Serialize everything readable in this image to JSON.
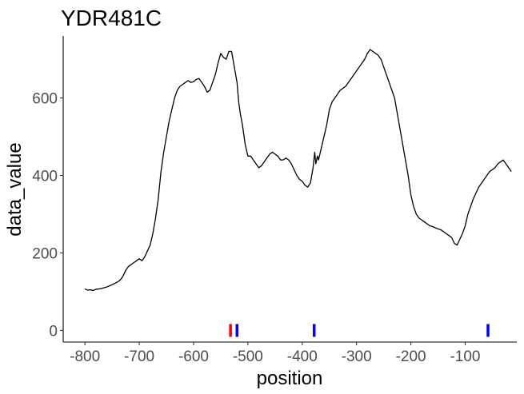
{
  "chart_data": {
    "type": "line",
    "title": "YDR481C",
    "xlabel": "position",
    "ylabel": "data_value",
    "xlim": [
      -840,
      -5
    ],
    "ylim": [
      -30,
      760
    ],
    "x_ticks": [
      -800,
      -700,
      -600,
      -500,
      -400,
      -300,
      -200,
      -100
    ],
    "x_tick_labels": [
      "-800",
      "-700",
      "-600",
      "-500",
      "-400",
      "-300",
      "-200",
      "-100"
    ],
    "y_ticks": [
      0,
      200,
      400,
      600
    ],
    "y_tick_labels": [
      "0",
      "200",
      "400",
      "600"
    ],
    "grid": false,
    "legend": "none",
    "line_color": "#000000",
    "series": [
      {
        "x": [
          -800,
          -795,
          -790,
          -785,
          -780,
          -770,
          -760,
          -750,
          -740,
          -735,
          -730,
          -725,
          -720,
          -715,
          -710,
          -705,
          -700,
          -695,
          -690,
          -685,
          -680,
          -675,
          -670,
          -665,
          -660,
          -655,
          -650,
          -645,
          -640,
          -635,
          -630,
          -625,
          -620,
          -615,
          -610,
          -605,
          -600,
          -595,
          -590,
          -585,
          -580,
          -575,
          -570,
          -565,
          -560,
          -555,
          -550,
          -545,
          -540,
          -535,
          -530,
          -525,
          -520,
          -517,
          -514,
          -510,
          -505,
          -500,
          -495,
          -490,
          -485,
          -480,
          -475,
          -470,
          -465,
          -460,
          -455,
          -450,
          -445,
          -440,
          -435,
          -430,
          -425,
          -420,
          -415,
          -410,
          -405,
          -400,
          -395,
          -390,
          -385,
          -380,
          -377,
          -375,
          -372,
          -370,
          -365,
          -360,
          -355,
          -350,
          -345,
          -340,
          -335,
          -330,
          -325,
          -320,
          -315,
          -310,
          -305,
          -300,
          -295,
          -290,
          -285,
          -280,
          -275,
          -270,
          -265,
          -260,
          -255,
          -250,
          -245,
          -240,
          -235,
          -230,
          -225,
          -220,
          -215,
          -210,
          -205,
          -200,
          -195,
          -190,
          -185,
          -180,
          -175,
          -170,
          -165,
          -160,
          -155,
          -150,
          -145,
          -140,
          -135,
          -130,
          -125,
          -120,
          -115,
          -110,
          -105,
          -100,
          -95,
          -90,
          -85,
          -80,
          -75,
          -70,
          -65,
          -60,
          -55,
          -50,
          -45,
          -40,
          -35,
          -30,
          -25,
          -20,
          -15
        ],
        "y": [
          107,
          104,
          105,
          103,
          106,
          108,
          112,
          118,
          125,
          130,
          140,
          155,
          165,
          170,
          175,
          180,
          185,
          180,
          190,
          205,
          220,
          250,
          290,
          340,
          410,
          460,
          500,
          540,
          570,
          600,
          620,
          630,
          635,
          640,
          645,
          640,
          642,
          648,
          650,
          640,
          630,
          615,
          620,
          640,
          660,
          690,
          715,
          705,
          700,
          720,
          720,
          680,
          640,
          590,
          560,
          530,
          480,
          450,
          450,
          440,
          430,
          420,
          425,
          435,
          445,
          455,
          460,
          455,
          450,
          440,
          440,
          445,
          440,
          430,
          415,
          400,
          390,
          385,
          375,
          370,
          380,
          420,
          460,
          430,
          450,
          440,
          470,
          500,
          530,
          570,
          590,
          600,
          610,
          620,
          625,
          630,
          640,
          650,
          660,
          670,
          680,
          690,
          700,
          715,
          725,
          720,
          715,
          710,
          700,
          680,
          660,
          640,
          620,
          600,
          560,
          520,
          480,
          440,
          400,
          350,
          320,
          300,
          290,
          285,
          280,
          275,
          270,
          268,
          265,
          262,
          260,
          255,
          250,
          245,
          240,
          225,
          220,
          235,
          250,
          270,
          300,
          320,
          340,
          355,
          370,
          380,
          390,
          400,
          410,
          415,
          420,
          430,
          435,
          440,
          430,
          420,
          410
        ]
      }
    ],
    "markers": [
      {
        "x": -532,
        "color": "#ff0000"
      },
      {
        "x": -520,
        "color": "#0000ff"
      },
      {
        "x": -378,
        "color": "#0000ff"
      },
      {
        "x": -58,
        "color": "#0000ff"
      }
    ]
  }
}
